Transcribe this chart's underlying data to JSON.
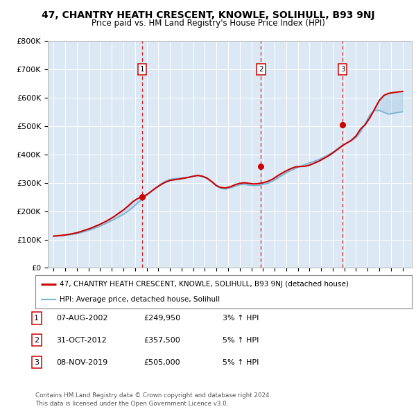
{
  "title": "47, CHANTRY HEATH CRESCENT, KNOWLE, SOLIHULL, B93 9NJ",
  "subtitle": "Price paid vs. HM Land Registry's House Price Index (HPI)",
  "plot_bg_color": "#dce9f5",
  "sale_dates": [
    2002.6,
    2012.83,
    2019.85
  ],
  "sale_prices": [
    249950,
    357500,
    505000
  ],
  "sale_labels": [
    "1",
    "2",
    "3"
  ],
  "legend_line1": "47, CHANTRY HEATH CRESCENT, KNOWLE, SOLIHULL, B93 9NJ (detached house)",
  "legend_line2": "HPI: Average price, detached house, Solihull",
  "table_data": [
    [
      "1",
      "07-AUG-2002",
      "£249,950",
      "3% ↑ HPI"
    ],
    [
      "2",
      "31-OCT-2012",
      "£357,500",
      "5% ↑ HPI"
    ],
    [
      "3",
      "08-NOV-2019",
      "£505,000",
      "5% ↑ HPI"
    ]
  ],
  "footer": "Contains HM Land Registry data © Crown copyright and database right 2024.\nThis data is licensed under the Open Government Licence v3.0.",
  "ylim": [
    0,
    800000
  ],
  "yticks": [
    0,
    100000,
    200000,
    300000,
    400000,
    500000,
    600000,
    700000,
    800000
  ],
  "ytick_labels": [
    "£0",
    "£100K",
    "£200K",
    "£300K",
    "£400K",
    "£500K",
    "£600K",
    "£700K",
    "£800K"
  ],
  "xlim_left": 1994.5,
  "xlim_right": 2025.8,
  "red_color": "#cc0000",
  "blue_color": "#7ab0d4",
  "hpi_years": [
    1995.0,
    1995.4,
    1995.8,
    1996.2,
    1996.6,
    1997.0,
    1997.4,
    1997.8,
    1998.2,
    1998.6,
    1999.0,
    1999.4,
    1999.8,
    2000.2,
    2000.6,
    2001.0,
    2001.4,
    2001.8,
    2002.2,
    2002.6,
    2003.0,
    2003.4,
    2003.8,
    2004.2,
    2004.6,
    2005.0,
    2005.4,
    2005.8,
    2006.2,
    2006.6,
    2007.0,
    2007.4,
    2007.8,
    2008.2,
    2008.6,
    2009.0,
    2009.4,
    2009.8,
    2010.2,
    2010.6,
    2011.0,
    2011.4,
    2011.8,
    2012.2,
    2012.6,
    2013.0,
    2013.4,
    2013.8,
    2014.2,
    2014.6,
    2015.0,
    2015.4,
    2015.8,
    2016.2,
    2016.6,
    2017.0,
    2017.4,
    2017.8,
    2018.2,
    2018.6,
    2019.0,
    2019.4,
    2019.8,
    2020.2,
    2020.6,
    2021.0,
    2021.4,
    2021.8,
    2022.2,
    2022.6,
    2023.0,
    2023.4,
    2023.8,
    2024.2,
    2024.6,
    2025.0
  ],
  "hpi_values": [
    112000,
    113000,
    114000,
    116000,
    118000,
    121000,
    125000,
    130000,
    135000,
    141000,
    148000,
    155000,
    163000,
    171000,
    180000,
    189000,
    200000,
    213000,
    228000,
    242000,
    256000,
    270000,
    283000,
    295000,
    305000,
    312000,
    315000,
    316000,
    318000,
    320000,
    323000,
    325000,
    322000,
    315000,
    303000,
    288000,
    280000,
    278000,
    282000,
    288000,
    293000,
    294000,
    292000,
    290000,
    291000,
    294000,
    298000,
    305000,
    315000,
    325000,
    335000,
    344000,
    351000,
    358000,
    364000,
    370000,
    376000,
    382000,
    390000,
    398000,
    408000,
    420000,
    432000,
    440000,
    448000,
    460000,
    480000,
    510000,
    540000,
    555000,
    555000,
    548000,
    542000,
    545000,
    548000,
    550000
  ],
  "red_values": [
    112000,
    113500,
    115000,
    117500,
    120500,
    124000,
    129000,
    134500,
    140000,
    147000,
    154000,
    162000,
    171000,
    181000,
    193000,
    204000,
    218000,
    233000,
    244000,
    249950,
    258000,
    270000,
    282000,
    293000,
    302000,
    308000,
    311000,
    313000,
    316000,
    319000,
    323000,
    326000,
    323000,
    316000,
    304000,
    290000,
    283000,
    282000,
    286000,
    293000,
    298000,
    300000,
    298000,
    296000,
    297000,
    300000,
    305000,
    312000,
    323000,
    333000,
    342000,
    350000,
    356000,
    357500,
    358000,
    362000,
    369000,
    376000,
    385000,
    394000,
    405000,
    417000,
    430000,
    440000,
    450000,
    465000,
    490000,
    505000,
    530000,
    560000,
    590000,
    608000,
    615000,
    618000,
    620000,
    622000
  ]
}
